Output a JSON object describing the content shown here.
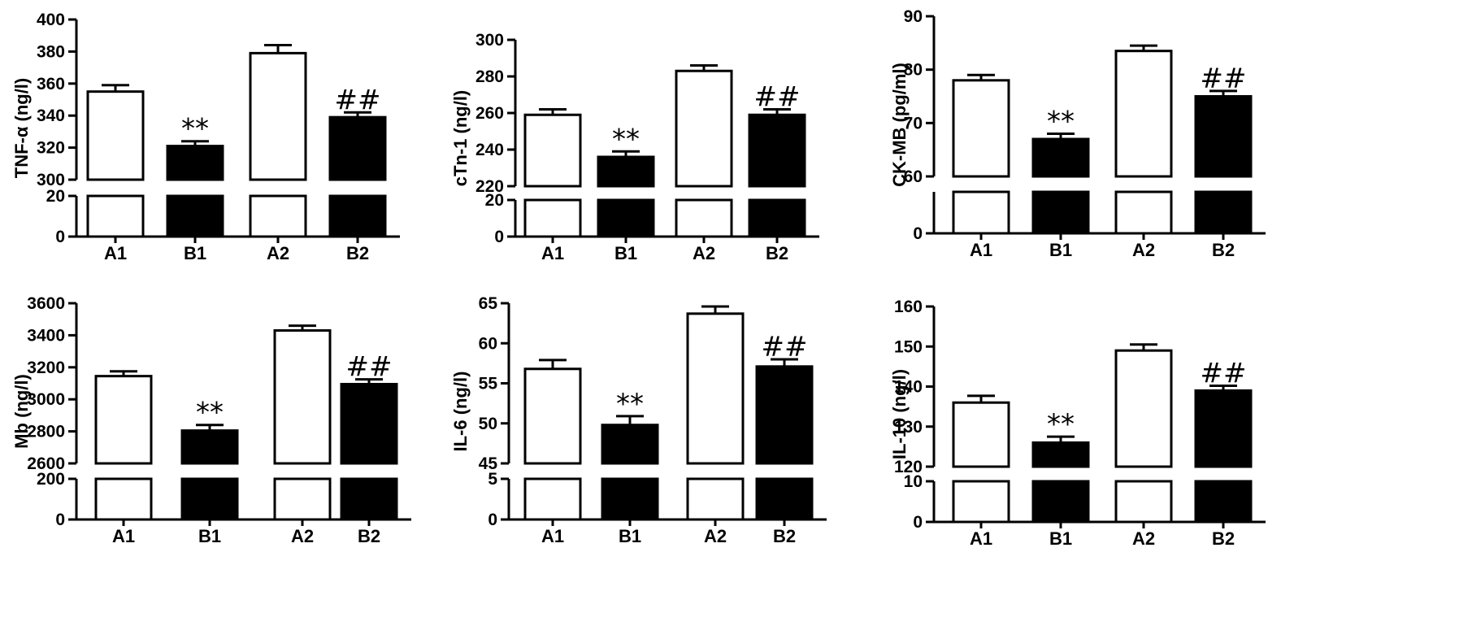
{
  "chart_data": [
    {
      "type": "bar",
      "ylabel": "TNF-α (ng/l)",
      "categories": [
        "A1",
        "B1",
        "A2",
        "B2"
      ],
      "values": [
        355,
        321,
        379,
        339
      ],
      "errors": [
        4,
        3,
        5,
        3
      ],
      "colors": [
        "#ffffff",
        "#000000",
        "#ffffff",
        "#000000"
      ],
      "annotations": [
        "",
        "**",
        "",
        "##"
      ],
      "lower_range": [
        0,
        20
      ],
      "upper_range": [
        300,
        400
      ],
      "lower_ticks": [
        0,
        20
      ],
      "upper_ticks": [
        300,
        320,
        340,
        360,
        380,
        400
      ],
      "tick_labels_lower": [
        "0",
        "20"
      ],
      "tick_labels_upper": [
        "300",
        "320",
        "340",
        "360",
        "380",
        "400"
      ],
      "broken_axis": true
    },
    {
      "type": "bar",
      "ylabel": "cTn-1 (ng/l)",
      "categories": [
        "A1",
        "B1",
        "A2",
        "B2"
      ],
      "values": [
        259,
        236,
        283,
        259
      ],
      "errors": [
        3,
        3,
        3,
        3
      ],
      "colors": [
        "#ffffff",
        "#000000",
        "#ffffff",
        "#000000"
      ],
      "annotations": [
        "",
        "**",
        "",
        "##"
      ],
      "lower_range": [
        0,
        20
      ],
      "upper_range": [
        220,
        300
      ],
      "lower_ticks": [
        0,
        20
      ],
      "upper_ticks": [
        220,
        240,
        260,
        280,
        300
      ],
      "tick_labels_lower": [
        "0",
        "20"
      ],
      "tick_labels_upper": [
        "220",
        "240",
        "260",
        "280",
        "300"
      ],
      "broken_axis": true
    },
    {
      "type": "bar",
      "ylabel": "CK-MB (pg/ml)",
      "categories": [
        "A1",
        "B1",
        "A2",
        "B2"
      ],
      "values": [
        78,
        67,
        83.5,
        75
      ],
      "errors": [
        1,
        1,
        1,
        1
      ],
      "colors": [
        "#ffffff",
        "#000000",
        "#ffffff",
        "#000000"
      ],
      "annotations": [
        "",
        "**",
        "",
        "##"
      ],
      "lower_range": [
        0,
        5
      ],
      "upper_range": [
        60,
        90
      ],
      "lower_ticks": [
        0
      ],
      "upper_ticks": [
        60,
        70,
        80,
        90
      ],
      "tick_labels_lower": [
        "0"
      ],
      "tick_labels_upper": [
        "60",
        "70",
        "80",
        "90"
      ],
      "broken_axis": true
    },
    {
      "type": "bar",
      "ylabel": "Mb (ng/l)",
      "categories": [
        "A1",
        "B1",
        "A2",
        "B2"
      ],
      "values": [
        3145,
        2805,
        3430,
        3095
      ],
      "errors": [
        30,
        35,
        30,
        30
      ],
      "colors": [
        "#ffffff",
        "#000000",
        "#ffffff",
        "#000000"
      ],
      "annotations": [
        "",
        "**",
        "",
        "##"
      ],
      "lower_range": [
        0,
        200
      ],
      "upper_range": [
        2600,
        3600
      ],
      "lower_ticks": [
        0,
        200
      ],
      "upper_ticks": [
        2600,
        2800,
        3000,
        3200,
        3400,
        3600
      ],
      "tick_labels_lower": [
        "0",
        "200"
      ],
      "tick_labels_upper": [
        "2600",
        "2800",
        "3000",
        "3200",
        "3400",
        "3600"
      ],
      "broken_axis": true
    },
    {
      "type": "bar",
      "ylabel": "IL-6 (ng/l)",
      "categories": [
        "A1",
        "B1",
        "A2",
        "B2"
      ],
      "values": [
        56.8,
        49.8,
        63.7,
        57.1
      ],
      "errors": [
        1.1,
        1.1,
        0.9,
        0.9
      ],
      "colors": [
        "#ffffff",
        "#000000",
        "#ffffff",
        "#000000"
      ],
      "annotations": [
        "",
        "**",
        "",
        "##"
      ],
      "lower_range": [
        0,
        5
      ],
      "upper_range": [
        45,
        65
      ],
      "lower_ticks": [
        0,
        5
      ],
      "upper_ticks": [
        45,
        50,
        55,
        60,
        65
      ],
      "tick_labels_lower": [
        "0",
        "5"
      ],
      "tick_labels_upper": [
        "45",
        "50",
        "55",
        "60",
        "65"
      ],
      "broken_axis": true
    },
    {
      "type": "bar",
      "ylabel": "IL-10 (ng/l)",
      "categories": [
        "A1",
        "B1",
        "A2",
        "B2"
      ],
      "values": [
        136,
        126,
        149,
        139
      ],
      "errors": [
        1.7,
        1.5,
        1.5,
        1.2
      ],
      "colors": [
        "#ffffff",
        "#000000",
        "#ffffff",
        "#000000"
      ],
      "annotations": [
        "",
        "**",
        "",
        "##"
      ],
      "lower_range": [
        0,
        10
      ],
      "upper_range": [
        120,
        160
      ],
      "lower_ticks": [
        0,
        10
      ],
      "upper_ticks": [
        120,
        130,
        140,
        150,
        160
      ],
      "tick_labels_lower": [
        "0",
        "10"
      ],
      "tick_labels_upper": [
        "120",
        "130",
        "140",
        "150",
        "160"
      ],
      "broken_axis": true
    }
  ]
}
